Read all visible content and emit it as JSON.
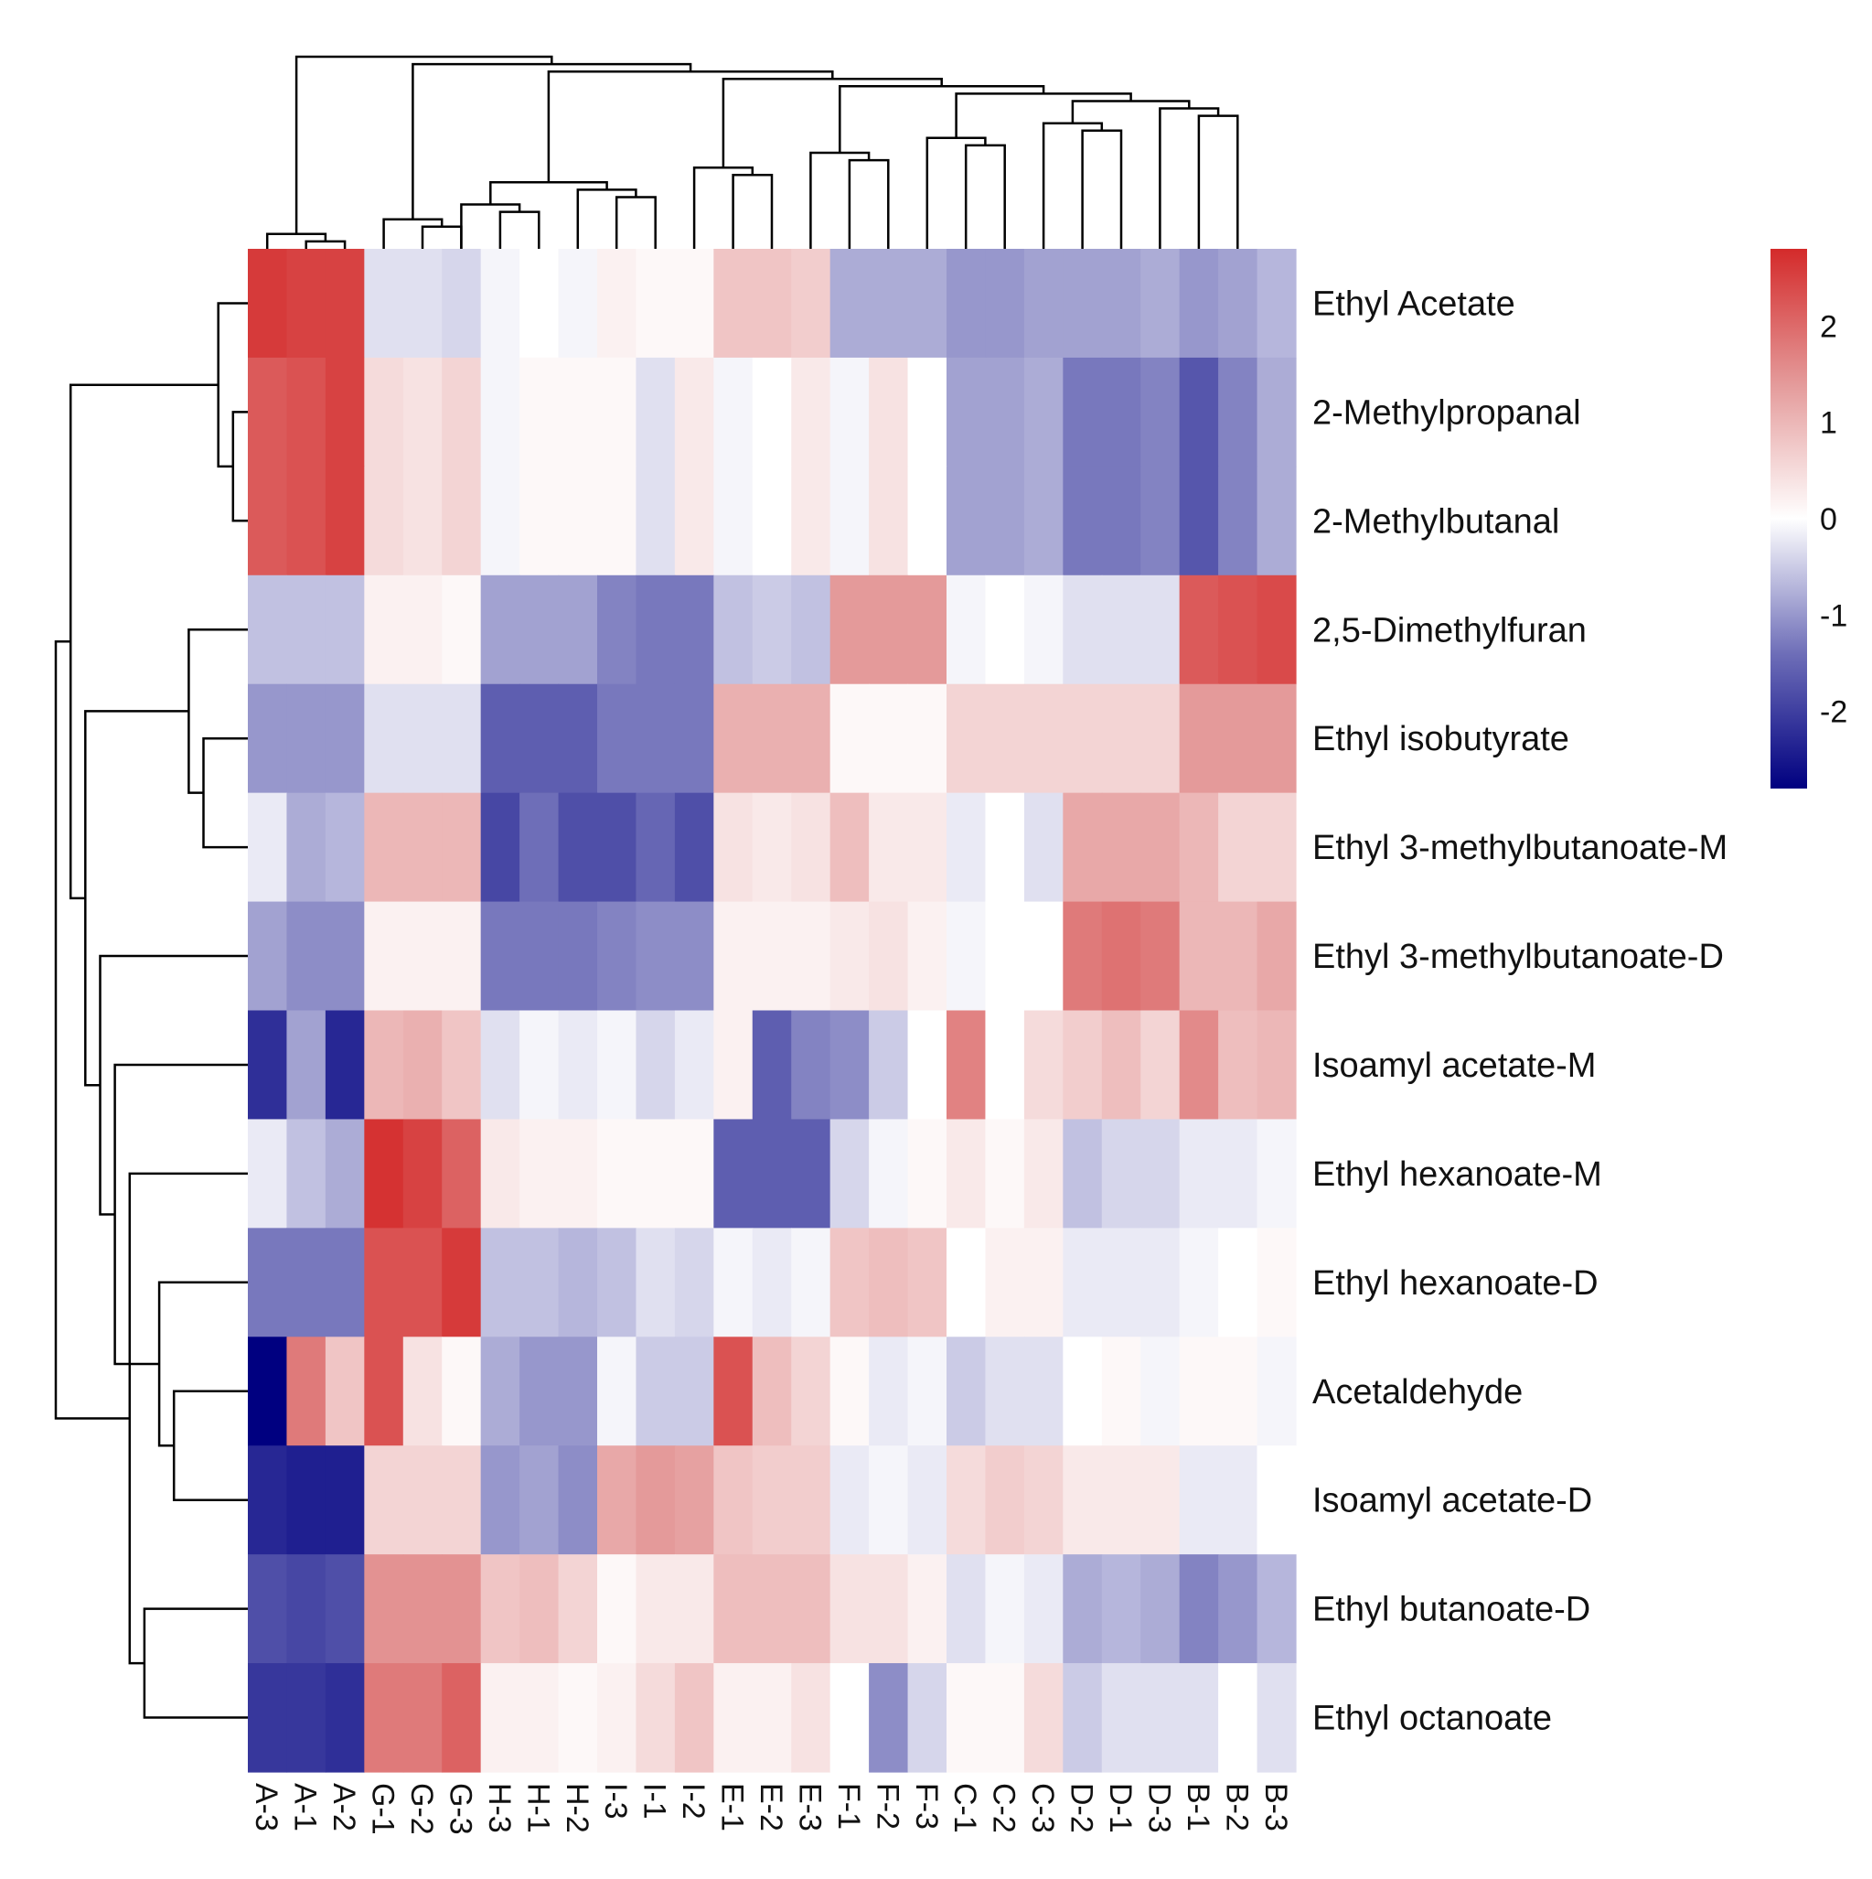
{
  "chart_data": {
    "type": "heatmap",
    "title": "",
    "rows": [
      "Ethyl Acetate",
      "2-Methylpropanal",
      "2-Methylbutanal",
      "2,5-Dimethylfuran",
      "Ethyl isobutyrate",
      "Ethyl 3-methylbutanoate-M",
      "Ethyl 3-methylbutanoate-D",
      "Isoamyl acetate-M",
      "Ethyl hexanoate-M",
      "Ethyl hexanoate-D",
      "Acetaldehyde",
      "Isoamyl acetate-D",
      "Ethyl butanoate-D",
      "Ethyl octanoate"
    ],
    "columns": [
      "A-3",
      "A-1",
      "A-2",
      "G-1",
      "G-2",
      "G-3",
      "H-3",
      "H-1",
      "H-2",
      "I-3",
      "I-1",
      "I-2",
      "E-1",
      "E-2",
      "E-3",
      "F-1",
      "F-2",
      "F-3",
      "C-1",
      "C-2",
      "C-3",
      "D-2",
      "D-1",
      "D-3",
      "B-1",
      "B-2",
      "B-3"
    ],
    "values": [
      [
        2.6,
        2.5,
        2.5,
        -0.3,
        -0.3,
        -0.4,
        -0.1,
        0.0,
        -0.1,
        0.2,
        0.1,
        0.1,
        0.8,
        0.8,
        0.7,
        -0.8,
        -0.8,
        -0.8,
        -1.0,
        -1.0,
        -0.9,
        -0.9,
        -0.9,
        -0.8,
        -1.0,
        -0.9,
        -0.7
      ],
      [
        2.2,
        2.3,
        2.5,
        0.5,
        0.4,
        0.6,
        -0.1,
        0.1,
        0.1,
        0.1,
        -0.3,
        0.3,
        -0.1,
        0.0,
        0.3,
        -0.1,
        0.4,
        0.0,
        -0.9,
        -0.9,
        -0.8,
        -1.3,
        -1.3,
        -1.2,
        -1.7,
        -1.2,
        -0.8
      ],
      [
        2.2,
        2.3,
        2.5,
        0.5,
        0.4,
        0.6,
        -0.1,
        0.1,
        0.1,
        0.1,
        -0.3,
        0.3,
        -0.1,
        0.0,
        0.3,
        -0.1,
        0.4,
        0.0,
        -0.9,
        -0.9,
        -0.8,
        -1.3,
        -1.3,
        -1.2,
        -1.7,
        -1.2,
        -0.8
      ],
      [
        -0.6,
        -0.6,
        -0.6,
        0.2,
        0.2,
        0.1,
        -0.9,
        -0.9,
        -0.9,
        -1.2,
        -1.3,
        -1.3,
        -0.6,
        -0.5,
        -0.6,
        1.4,
        1.4,
        1.4,
        -0.1,
        0.0,
        -0.1,
        -0.3,
        -0.3,
        -0.3,
        2.2,
        2.3,
        2.4
      ],
      [
        -1.0,
        -1.0,
        -1.0,
        -0.3,
        -0.3,
        -0.3,
        -1.6,
        -1.6,
        -1.6,
        -1.3,
        -1.3,
        -1.3,
        1.1,
        1.1,
        1.1,
        0.1,
        0.1,
        0.1,
        0.6,
        0.6,
        0.6,
        0.6,
        0.6,
        0.6,
        1.4,
        1.4,
        1.4
      ],
      [
        -0.2,
        -0.8,
        -0.7,
        1.0,
        1.0,
        1.0,
        -1.9,
        -1.4,
        -1.8,
        -1.8,
        -1.5,
        -1.8,
        0.4,
        0.3,
        0.4,
        0.9,
        0.3,
        0.3,
        -0.2,
        0.0,
        -0.3,
        1.2,
        1.2,
        1.2,
        1.0,
        0.6,
        0.6
      ],
      [
        -0.9,
        -1.1,
        -1.1,
        0.2,
        0.2,
        0.2,
        -1.3,
        -1.3,
        -1.3,
        -1.2,
        -1.1,
        -1.1,
        0.2,
        0.2,
        0.2,
        0.3,
        0.4,
        0.2,
        -0.1,
        0.0,
        0.0,
        1.8,
        1.9,
        1.8,
        1.0,
        1.0,
        1.2
      ],
      [
        -2.2,
        -0.9,
        -2.3,
        1.0,
        1.1,
        0.8,
        -0.3,
        -0.1,
        -0.2,
        -0.1,
        -0.4,
        -0.2,
        0.2,
        -1.6,
        -1.2,
        -1.1,
        -0.5,
        0.0,
        1.7,
        0.0,
        0.5,
        0.7,
        0.9,
        0.6,
        1.6,
        0.9,
        1.0
      ],
      [
        -0.2,
        -0.6,
        -0.8,
        2.7,
        2.5,
        2.1,
        0.3,
        0.2,
        0.2,
        0.1,
        0.1,
        0.1,
        -1.6,
        -1.6,
        -1.6,
        -0.4,
        -0.1,
        0.1,
        0.3,
        0.1,
        0.3,
        -0.6,
        -0.4,
        -0.4,
        -0.2,
        -0.2,
        -0.1
      ],
      [
        -1.3,
        -1.3,
        -1.3,
        2.3,
        2.3,
        2.6,
        -0.6,
        -0.6,
        -0.7,
        -0.6,
        -0.3,
        -0.4,
        -0.1,
        -0.2,
        -0.1,
        0.8,
        0.9,
        0.8,
        0.0,
        0.2,
        0.2,
        -0.2,
        -0.2,
        -0.2,
        -0.1,
        0.0,
        0.1
      ],
      [
        -2.8,
        1.8,
        0.8,
        2.3,
        0.4,
        0.1,
        -0.8,
        -1.0,
        -1.0,
        -0.1,
        -0.5,
        -0.5,
        2.3,
        0.9,
        0.6,
        0.1,
        -0.2,
        -0.1,
        -0.5,
        -0.3,
        -0.3,
        0.0,
        0.1,
        -0.1,
        0.1,
        0.1,
        -0.1
      ],
      [
        -2.3,
        -2.4,
        -2.4,
        0.6,
        0.6,
        0.6,
        -1.0,
        -0.9,
        -1.1,
        1.2,
        1.4,
        1.3,
        0.8,
        0.7,
        0.7,
        -0.2,
        -0.1,
        -0.2,
        0.5,
        0.7,
        0.6,
        0.3,
        0.3,
        0.3,
        -0.2,
        -0.2,
        0.0
      ],
      [
        -1.8,
        -1.9,
        -1.8,
        1.5,
        1.5,
        1.5,
        0.8,
        0.9,
        0.6,
        0.1,
        0.3,
        0.3,
        0.9,
        0.9,
        0.9,
        0.4,
        0.4,
        0.2,
        -0.3,
        -0.1,
        -0.2,
        -0.8,
        -0.7,
        -0.8,
        -1.2,
        -1.0,
        -0.7
      ],
      [
        -2.1,
        -2.1,
        -2.2,
        1.8,
        1.8,
        2.1,
        0.2,
        0.2,
        0.1,
        0.2,
        0.5,
        0.8,
        0.2,
        0.2,
        0.4,
        0.0,
        -1.1,
        -0.4,
        0.1,
        0.1,
        0.5,
        -0.5,
        -0.3,
        -0.3,
        -0.3,
        0.0,
        -0.3
      ]
    ],
    "colorbar": {
      "ticks": [
        2,
        1,
        0,
        -1,
        -2
      ],
      "range": [
        -2.8,
        2.8
      ],
      "low_color": "#000080",
      "mid_color": "#ffffff",
      "high_color": "#d42a2a"
    },
    "row_tree": [
      [
        2,
        3
      ],
      [
        1,
        "L0"
      ],
      [
        5,
        6
      ],
      [
        4,
        "L2"
      ],
      [
        11,
        12
      ],
      [
        10,
        "L4"
      ],
      [
        13,
        14
      ],
      [
        9,
        "L6"
      ],
      [
        8,
        "L5"
      ],
      [
        7,
        "L8"
      ],
      [
        "L3",
        "L9"
      ],
      [
        "L1",
        "L10"
      ],
      [
        "L7",
        "L11"
      ]
    ],
    "col_tree": [
      [
        2,
        3
      ],
      [
        1,
        "L0"
      ],
      [
        5,
        6
      ],
      [
        4,
        "L2"
      ],
      [
        7,
        8
      ],
      [
        6,
        "L4"
      ],
      [
        10,
        11
      ],
      [
        9,
        "L6"
      ],
      [
        "L5",
        "L7"
      ],
      [
        13,
        14
      ],
      [
        12,
        "L9"
      ],
      [
        16,
        17
      ],
      [
        15,
        "L11"
      ],
      [
        19,
        20
      ],
      [
        18,
        "L13"
      ],
      [
        22,
        23
      ],
      [
        21,
        "L15"
      ],
      [
        25,
        26
      ],
      [
        24,
        "L17"
      ],
      [
        "L16",
        "L18"
      ],
      [
        "L14",
        "L19"
      ],
      [
        "L12",
        "L20"
      ],
      [
        "L10",
        "L21"
      ],
      [
        "L8",
        "L22"
      ],
      [
        "L3",
        "L23"
      ],
      [
        "L1",
        "L24"
      ]
    ]
  }
}
